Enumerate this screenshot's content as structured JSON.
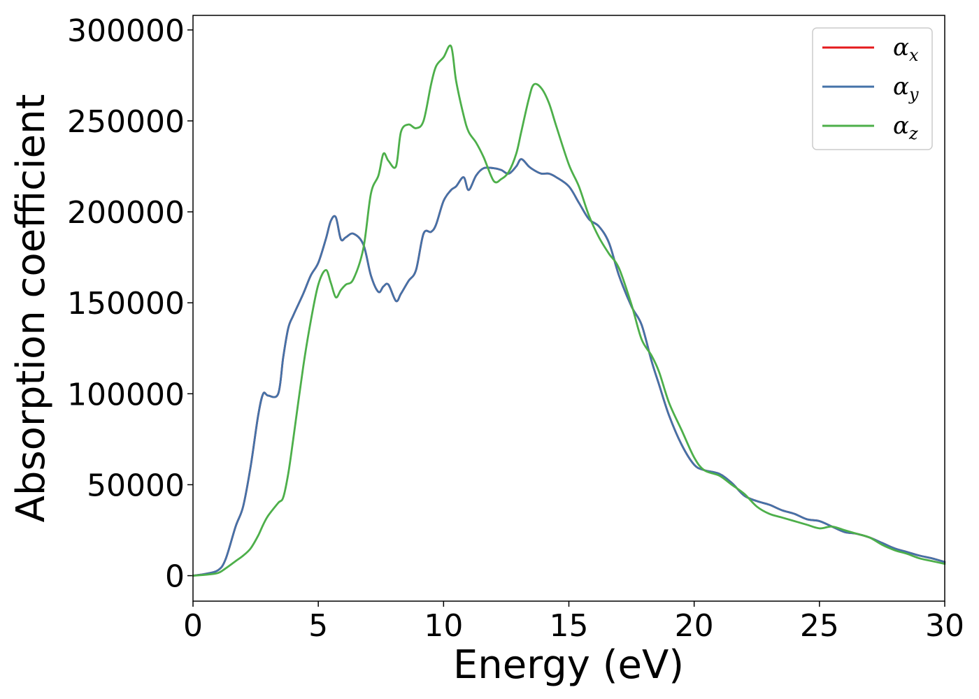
{
  "chart_data": {
    "type": "line",
    "title": "",
    "xlabel": "Energy (eV)",
    "ylabel": "Absorption coefficient",
    "xlim": [
      0,
      30
    ],
    "ylim": [
      -14000,
      308000
    ],
    "xticks": [
      0,
      5,
      10,
      15,
      20,
      25,
      30
    ],
    "xtick_labels": [
      "0",
      "5",
      "10",
      "15",
      "20",
      "25",
      "30"
    ],
    "yticks": [
      0,
      50000,
      100000,
      150000,
      200000,
      250000,
      300000
    ],
    "ytick_labels": [
      "0",
      "50000",
      "100000",
      "150000",
      "200000",
      "250000",
      "300000"
    ],
    "grid": false,
    "legend_position": "top-right",
    "x": [
      0,
      0.5,
      1.0,
      1.3,
      1.7,
      2.0,
      2.3,
      2.6,
      2.8,
      3.0,
      3.4,
      3.6,
      3.8,
      4.0,
      4.4,
      4.7,
      5.0,
      5.3,
      5.5,
      5.7,
      5.9,
      6.1,
      6.4,
      6.8,
      7.1,
      7.4,
      7.6,
      7.8,
      8.1,
      8.3,
      8.6,
      8.9,
      9.2,
      9.5,
      9.7,
      10.0,
      10.3,
      10.5,
      10.8,
      11.0,
      11.3,
      11.6,
      12.0,
      12.3,
      12.6,
      12.9,
      13.1,
      13.4,
      13.6,
      13.9,
      14.2,
      14.5,
      15.0,
      15.4,
      15.8,
      16.2,
      16.6,
      17.0,
      17.5,
      17.9,
      18.3,
      18.6,
      19.0,
      19.5,
      20.0,
      20.4,
      21.0,
      21.5,
      22.0,
      22.5,
      23.0,
      23.5,
      24.0,
      24.5,
      25.0,
      25.5,
      26.0,
      26.5,
      27.0,
      27.5,
      28.0,
      28.5,
      29.0,
      29.5,
      30.0
    ],
    "series": [
      {
        "name": "αx",
        "label": "α",
        "subscript": "x",
        "color": "#e41a1c",
        "values": [
          0,
          1000,
          3000,
          9000,
          27000,
          38000,
          60000,
          88000,
          100000,
          99000,
          100000,
          120000,
          136000,
          143000,
          155000,
          165000,
          172000,
          185000,
          195000,
          197000,
          185000,
          186000,
          188000,
          182000,
          165000,
          156000,
          159000,
          160000,
          151000,
          155000,
          162000,
          168000,
          188000,
          189000,
          193000,
          206000,
          212000,
          214000,
          219000,
          212000,
          220000,
          224000,
          224000,
          223000,
          221000,
          225000,
          229000,
          225000,
          223000,
          221000,
          221000,
          219000,
          214000,
          205000,
          196000,
          192000,
          183000,
          165000,
          148000,
          138000,
          118000,
          105000,
          88000,
          72000,
          61000,
          58000,
          56000,
          51000,
          44000,
          41000,
          39000,
          36000,
          34000,
          31000,
          30000,
          27000,
          24000,
          23000,
          21000,
          18000,
          15000,
          13000,
          11000,
          9500,
          7500
        ]
      },
      {
        "name": "αy",
        "label": "α",
        "subscript": "y",
        "color": "#4472a8",
        "values": [
          0,
          1000,
          3000,
          9000,
          27000,
          38000,
          60000,
          88000,
          100000,
          99000,
          100000,
          120000,
          136000,
          143000,
          155000,
          165000,
          172000,
          185000,
          195000,
          197000,
          185000,
          186000,
          188000,
          182000,
          165000,
          156000,
          159000,
          160000,
          151000,
          155000,
          162000,
          168000,
          188000,
          189000,
          193000,
          206000,
          212000,
          214000,
          219000,
          212000,
          220000,
          224000,
          224000,
          223000,
          221000,
          225000,
          229000,
          225000,
          223000,
          221000,
          221000,
          219000,
          214000,
          205000,
          196000,
          192000,
          183000,
          165000,
          148000,
          138000,
          118000,
          105000,
          88000,
          72000,
          61000,
          58000,
          56000,
          51000,
          44000,
          41000,
          39000,
          36000,
          34000,
          31000,
          30000,
          27000,
          24000,
          23000,
          21000,
          18000,
          15000,
          13000,
          11000,
          9500,
          7500
        ]
      },
      {
        "name": "αz",
        "label": "α",
        "subscript": "z",
        "color": "#4daf4a",
        "values": [
          0,
          500,
          1500,
          4000,
          8000,
          11000,
          15000,
          22000,
          28000,
          33000,
          40000,
          43000,
          56000,
          75000,
          115000,
          140000,
          160000,
          168000,
          161000,
          153000,
          157000,
          160000,
          163000,
          180000,
          210000,
          220000,
          232000,
          228000,
          225000,
          244000,
          248000,
          246000,
          250000,
          270000,
          280000,
          285000,
          291000,
          272000,
          253000,
          244000,
          238000,
          230000,
          217000,
          218000,
          222000,
          232000,
          244000,
          262000,
          270000,
          268000,
          260000,
          247000,
          226000,
          214000,
          198000,
          186000,
          177000,
          169000,
          149000,
          130000,
          121000,
          112000,
          95000,
          80000,
          65000,
          58000,
          55000,
          50000,
          45000,
          38000,
          34000,
          32000,
          30000,
          28000,
          26000,
          27000,
          25000,
          23000,
          21000,
          17000,
          14000,
          12000,
          9500,
          8000,
          6500
        ]
      }
    ]
  }
}
